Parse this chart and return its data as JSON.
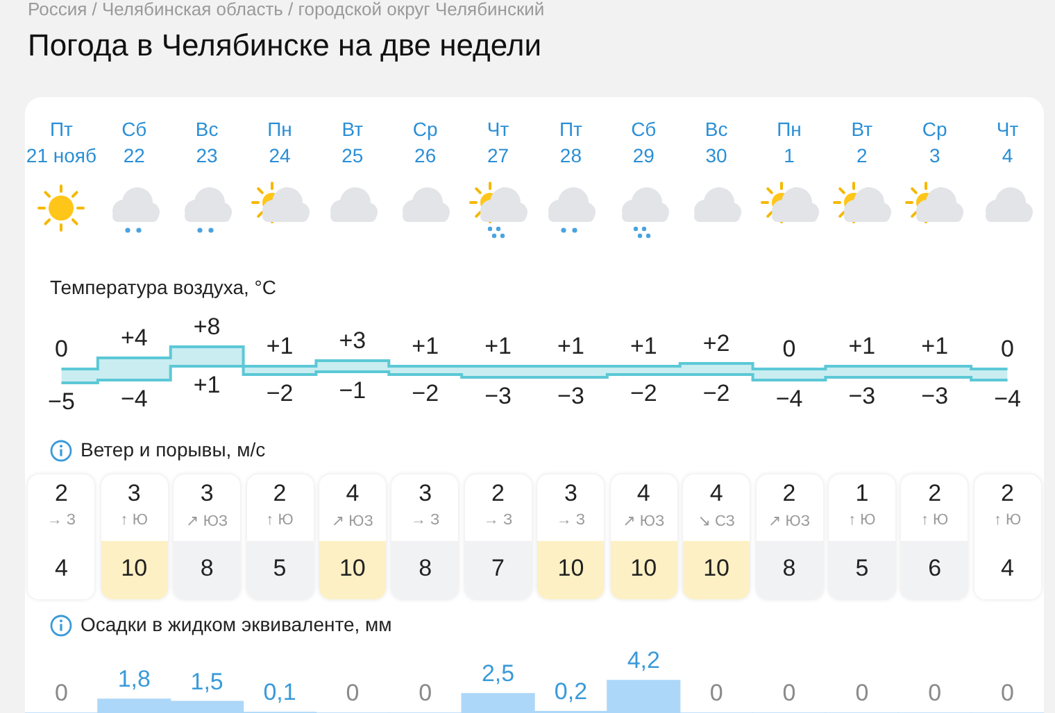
{
  "chart_data": [
    {
      "type": "step",
      "title": "Погода в Челябинске на две недели",
      "subtitle": "Температура воздуха, °C",
      "annotations": [
        "Россия / Челябинская область / городской округ Челябинский"
      ],
      "categories": [
        "Пт 21 нояб",
        "Сб 22",
        "Вс 23",
        "Пн 24",
        "Вт 25",
        "Ср 26",
        "Чт 27",
        "Пт 28",
        "Сб 29",
        "Вс 30",
        "Пн 1",
        "Вт 2",
        "Ср 3",
        "Чт 4"
      ],
      "tick_labels": "x",
      "legend": false,
      "series": [
        {
          "color": "#5cc8d6",
          "values": [
            0,
            4,
            8,
            1,
            3,
            1,
            1,
            1,
            1,
            2,
            0,
            1,
            1,
            0
          ],
          "value_labels": [
            "0",
            "+4",
            "+8",
            "+1",
            "+3",
            "+1",
            "+1",
            "+1",
            "+1",
            "+2",
            "0",
            "+1",
            "+1",
            "0"
          ]
        },
        {
          "color": "#5cc8d6",
          "values": [
            -5,
            -4,
            1,
            -2,
            -1,
            -2,
            -3,
            -3,
            -2,
            -2,
            -4,
            -3,
            -3,
            -4
          ],
          "value_labels": [
            "−5",
            "−4",
            "+1",
            "−2",
            "−1",
            "−2",
            "−3",
            "−3",
            "−2",
            "−2",
            "−4",
            "−3",
            "−3",
            "−4"
          ]
        }
      ]
    },
    {
      "type": "other",
      "title": "Ветер и порывы, м/с",
      "data_labels": true,
      "categories": [
        "→ З",
        "↑ Ю",
        "↗ ЮЗ",
        "↑ Ю",
        "↗ ЮЗ",
        "→ З",
        "→ З",
        "→ З",
        "↗ ЮЗ",
        "↘ СЗ",
        "↗ ЮЗ",
        "↑ Ю",
        "↑ Ю",
        "↑ Ю"
      ],
      "series": [
        {
          "values": [
            2,
            3,
            3,
            2,
            4,
            3,
            2,
            3,
            4,
            4,
            2,
            1,
            2,
            2
          ]
        },
        {
          "values": [
            4,
            10,
            8,
            5,
            10,
            8,
            7,
            10,
            10,
            10,
            8,
            5,
            6,
            4
          ],
          "colors": [
            "#ffffff",
            "#fdf0c4",
            "#f1f2f4",
            "#f1f2f4",
            "#fdf0c4",
            "#f1f2f4",
            "#f1f2f4",
            "#fdf0c4",
            "#fdf0c4",
            "#fdf0c4",
            "#f1f2f4",
            "#f1f2f4",
            "#f1f2f4",
            "#ffffff"
          ]
        }
      ]
    },
    {
      "type": "bar",
      "title": "Осадки в жидком эквиваленте, мм",
      "categories": [
        null,
        null,
        null,
        null,
        null,
        null,
        null,
        null,
        null,
        null,
        null,
        null,
        null,
        null
      ],
      "tick_labels": false,
      "legend": false,
      "color": "#acd7f8",
      "values": [
        0,
        1.8,
        1.5,
        0.1,
        0,
        0,
        2.5,
        0.2,
        4.2,
        0,
        0,
        0,
        0,
        0
      ],
      "value_labels": [
        "0",
        "1,8",
        "1,5",
        "0,1",
        "0",
        "0",
        "2,5",
        "0,2",
        "4,2",
        "0",
        "0",
        "0",
        "0",
        "0"
      ]
    }
  ]
}
